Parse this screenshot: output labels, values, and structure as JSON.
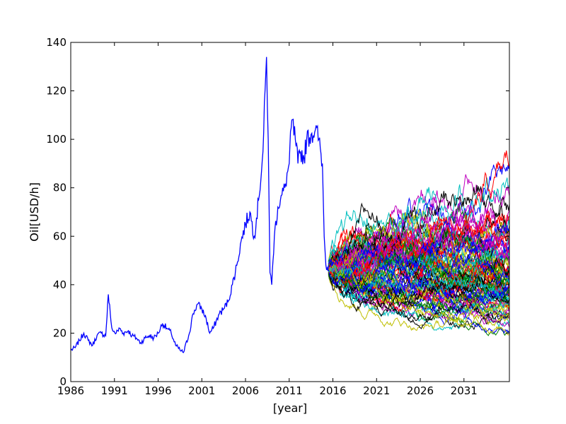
{
  "chart_data": {
    "type": "line",
    "title": "",
    "xlabel": "[year]",
    "ylabel": "Oil[USD/h]",
    "xlim": [
      1986,
      2036.2
    ],
    "ylim": [
      0,
      140
    ],
    "x_ticks": [
      1986,
      1991,
      1996,
      2001,
      2006,
      2011,
      2016,
      2021,
      2026,
      2031
    ],
    "x_tick_labels": [
      "1986",
      "1991",
      "1996",
      "2001",
      "2006",
      "2011",
      "2016",
      "2021",
      "2026",
      "2031"
    ],
    "y_ticks": [
      0,
      20,
      40,
      60,
      80,
      100,
      120,
      140
    ],
    "y_tick_labels": [
      "0",
      "20",
      "40",
      "60",
      "80",
      "100",
      "120",
      "140"
    ],
    "grid": false,
    "legend": "none",
    "historical": {
      "color": "#0000ff",
      "x": [
        1986.0,
        1986.5,
        1987.0,
        1987.5,
        1988.0,
        1988.5,
        1989.0,
        1989.5,
        1990.0,
        1990.3,
        1990.6,
        1990.8,
        1991.2,
        1991.6,
        1992.0,
        1992.6,
        1993.0,
        1993.5,
        1994.0,
        1994.5,
        1995.0,
        1995.5,
        1996.0,
        1996.5,
        1997.0,
        1997.5,
        1998.0,
        1998.5,
        1998.9,
        1999.5,
        2000.0,
        2000.5,
        2001.0,
        2001.5,
        2001.9,
        2002.3,
        2003.0,
        2003.5,
        2004.0,
        2004.5,
        2005.0,
        2005.5,
        2006.0,
        2006.5,
        2007.0,
        2007.5,
        2008.0,
        2008.4,
        2008.6,
        2008.8,
        2009.0,
        2009.3,
        2009.7,
        2010.0,
        2010.5,
        2011.0,
        2011.3,
        2011.7,
        2012.0,
        2012.3,
        2012.7,
        2013.0,
        2013.5,
        2014.0,
        2014.4,
        2014.8,
        2015.0,
        2015.2,
        2015.5
      ],
      "y": [
        13,
        14,
        17,
        20,
        17,
        15,
        19,
        20,
        19,
        36,
        25,
        21,
        20,
        22,
        20,
        21,
        19,
        18,
        16,
        18,
        19,
        18,
        20,
        24,
        22,
        20,
        15,
        13,
        12,
        19,
        28,
        32,
        30,
        26,
        20,
        22,
        28,
        30,
        33,
        40,
        48,
        58,
        65,
        70,
        60,
        75,
        95,
        134,
        100,
        45,
        40,
        60,
        72,
        75,
        80,
        90,
        108,
        100,
        90,
        95,
        92,
        100,
        102,
        104,
        100,
        90,
        60,
        48,
        48
      ]
    },
    "simulations": {
      "x_start": 2015.5,
      "x_end": 2036.2,
      "start_value": 47,
      "path_count": 100,
      "colors": [
        "#0000ff",
        "#00bfbf",
        "#ff0000",
        "#008000",
        "#bf00bf",
        "#bfbf00",
        "#000000"
      ]
    }
  }
}
